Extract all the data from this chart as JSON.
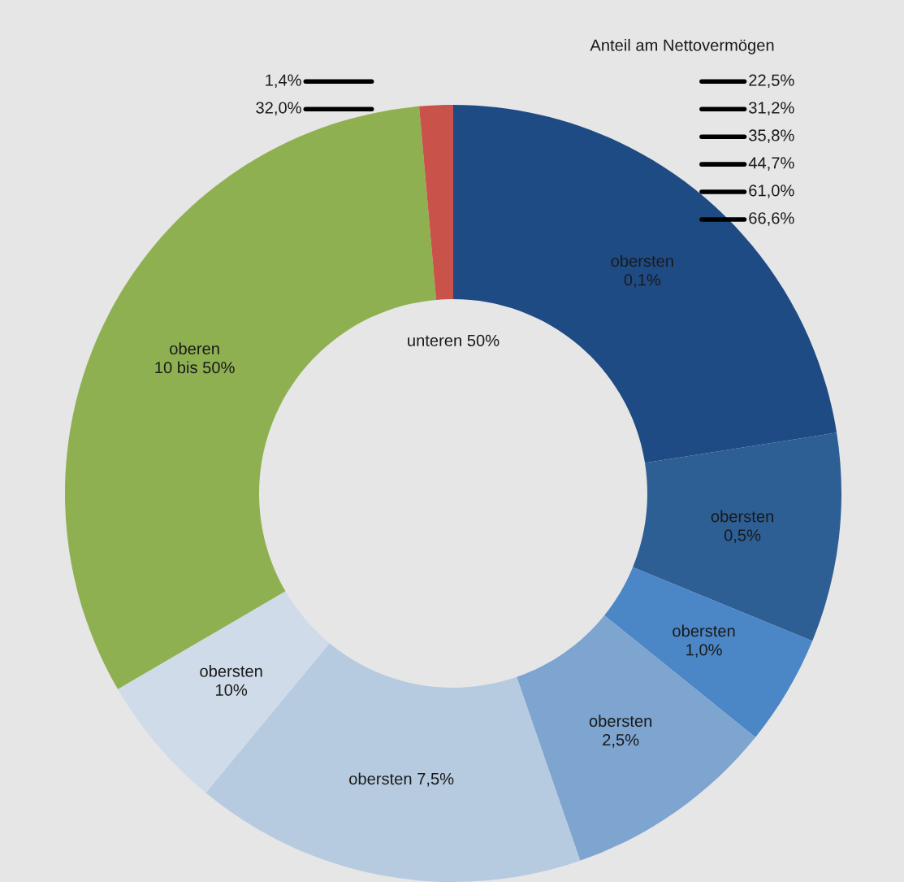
{
  "chart_data": {
    "type": "donut",
    "categories": [
      "obersten\n0,1%",
      "obersten\n0,5%",
      "obersten\n1,0%",
      "obersten\n2,5%",
      "obersten 7,5%",
      "obersten\n10%",
      "oberen\n10 bis 50%",
      "unteren 50%"
    ],
    "values": [
      22.5,
      8.7,
      4.6,
      8.9,
      16.3,
      5.6,
      32.0,
      1.4
    ],
    "colors": [
      "#1f4b85",
      "#2d5e94",
      "#4b87c6",
      "#7ea4d0",
      "#b7cbe0",
      "#cfdbe8",
      "#8fb051",
      "#c9534a"
    ],
    "annotations": [
      "Anteil am Nettovermögen",
      "22,5%",
      "31,2%",
      "35,8%",
      "44,7%",
      "61,0%",
      "66,6%",
      "32,0%",
      "1,4%"
    ]
  }
}
